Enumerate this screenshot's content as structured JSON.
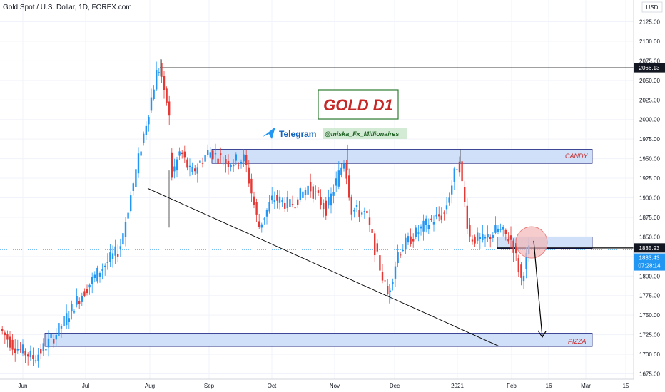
{
  "header": {
    "title": "Gold Spot / U.S. Dollar, 1D, FOREX.com",
    "currency": "USD"
  },
  "annotations": {
    "main_title": "GOLD D1",
    "telegram_label": "Telegram",
    "telegram_handle": "@miska_Fx_Millionaires",
    "zone_top": "CANDY",
    "zone_bottom": "PIZZA"
  },
  "price_tags": {
    "level": "2066.13",
    "support": "1835.93",
    "last": "1833.43",
    "countdown": "07:28:14"
  },
  "colors": {
    "up": "#2196f3",
    "down": "#e53935",
    "zone_fill": "#c9daf8",
    "zone_stroke": "#1a237e",
    "circle": "#f4b6b6"
  },
  "chart_data": {
    "type": "candlestick",
    "title": "Gold Spot / U.S. Dollar, 1D, FOREX.com",
    "y_axis": {
      "range": [
        1670,
        2130
      ],
      "ticks": [
        1675,
        1700,
        1725,
        1750,
        1775,
        1800,
        1825,
        1850,
        1875,
        1900,
        1925,
        1950,
        1975,
        2000,
        2025,
        2050,
        2075,
        2100,
        2125
      ]
    },
    "x_axis": {
      "labels": [
        "Jun",
        "Jul",
        "Aug",
        "Sep",
        "Oct",
        "Nov",
        "Dec",
        "2021",
        "Feb",
        "16",
        "Mar",
        "15"
      ]
    },
    "ohlc_anchors": [
      {
        "x": 0,
        "price": 1735
      },
      {
        "x": 20,
        "price": 1712
      },
      {
        "x": 50,
        "price": 1695
      },
      {
        "x": 80,
        "price": 1725
      },
      {
        "x": 110,
        "price": 1768
      },
      {
        "x": 140,
        "price": 1805
      },
      {
        "x": 170,
        "price": 1835
      },
      {
        "x": 185,
        "price": 1900
      },
      {
        "x": 200,
        "price": 1965
      },
      {
        "x": 215,
        "price": 2030
      },
      {
        "x": 224,
        "price": 2070
      },
      {
        "x": 236,
        "price": 2015
      },
      {
        "x": 242,
        "price": 1925
      },
      {
        "x": 255,
        "price": 1960
      },
      {
        "x": 270,
        "price": 1930
      },
      {
        "x": 295,
        "price": 1960
      },
      {
        "x": 320,
        "price": 1945
      },
      {
        "x": 345,
        "price": 1950
      },
      {
        "x": 365,
        "price": 1862
      },
      {
        "x": 385,
        "price": 1900
      },
      {
        "x": 410,
        "price": 1890
      },
      {
        "x": 435,
        "price": 1915
      },
      {
        "x": 460,
        "price": 1885
      },
      {
        "x": 485,
        "price": 1950
      },
      {
        "x": 495,
        "price": 1885
      },
      {
        "x": 515,
        "price": 1880
      },
      {
        "x": 532,
        "price": 1820
      },
      {
        "x": 546,
        "price": 1775
      },
      {
        "x": 560,
        "price": 1830
      },
      {
        "x": 580,
        "price": 1850
      },
      {
        "x": 605,
        "price": 1870
      },
      {
        "x": 625,
        "price": 1880
      },
      {
        "x": 645,
        "price": 1950
      },
      {
        "x": 660,
        "price": 1850
      },
      {
        "x": 680,
        "price": 1845
      },
      {
        "x": 700,
        "price": 1860
      },
      {
        "x": 720,
        "price": 1845
      },
      {
        "x": 733,
        "price": 1795
      },
      {
        "x": 742,
        "price": 1832
      }
    ],
    "levels": [
      {
        "name": "resistance",
        "price": 2066.13
      },
      {
        "name": "support",
        "price": 1835.93
      },
      {
        "name": "last",
        "price": 1833.43
      }
    ],
    "zones": [
      {
        "name": "CANDY",
        "from": 1944,
        "to": 1962
      },
      {
        "name": "PIZZA",
        "from": 1710,
        "to": 1727
      },
      {
        "name": "retest",
        "from": 1835,
        "to": 1850
      }
    ],
    "trendline": [
      {
        "x": 207,
        "price": 1912
      },
      {
        "x": 700,
        "price": 1710
      }
    ]
  }
}
